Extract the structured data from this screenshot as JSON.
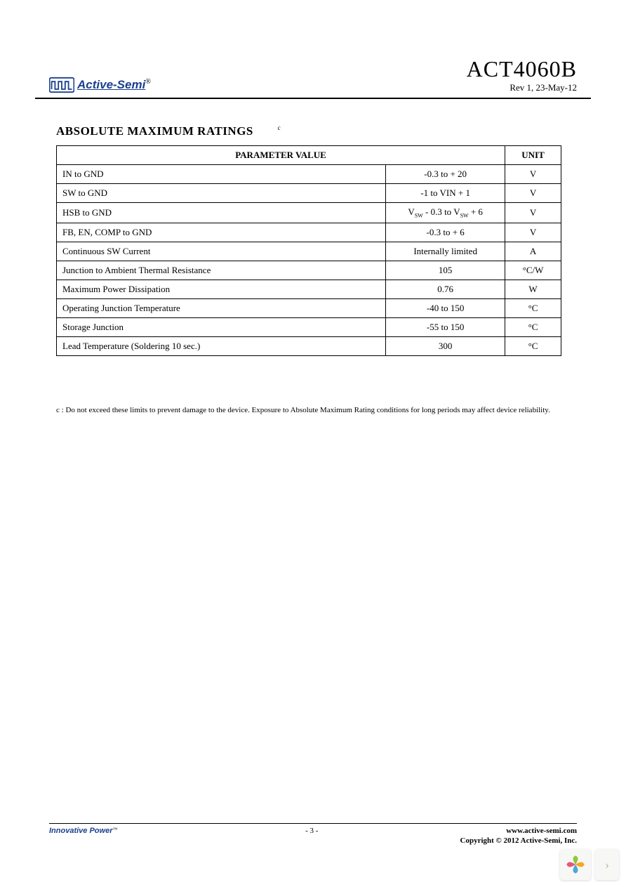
{
  "header": {
    "logo_text": "Active-Semi",
    "logo_reg": "®",
    "part_number": "ACT4060B",
    "revision": "Rev 1, 23-May-12"
  },
  "section": {
    "title": "ABSOLUTE MAXIMUM RATINGS",
    "note_marker": "c"
  },
  "table": {
    "headers": {
      "param": "PARAMETER VALUE",
      "unit": "UNIT"
    },
    "rows": [
      {
        "param": "IN to GND",
        "value": "-0.3 to + 20",
        "unit": "V"
      },
      {
        "param": "SW to GND",
        "value": "-1 to VIN + 1",
        "unit": "V"
      },
      {
        "param": "HSB to GND",
        "value_html": "V<sub>SW</sub> - 0.3 to V<sub>SW</sub> + 6",
        "unit": "V"
      },
      {
        "param": "FB, EN, COMP to GND",
        "value": "-0.3 to + 6",
        "unit": "V"
      },
      {
        "param": "Continuous SW Current",
        "value": "Internally limited",
        "unit": "A"
      },
      {
        "param": "Junction to Ambient Thermal Resistance",
        "value": "105",
        "unit": "°C/W"
      },
      {
        "param": "Maximum Power Dissipation",
        "value": "0.76",
        "unit": "W"
      },
      {
        "param": "Operating Junction Temperature",
        "value": "-40 to 150",
        "unit": "°C"
      },
      {
        "param": "Storage Junction",
        "value": "-55 to 150",
        "unit": "°C"
      },
      {
        "param": "Lead Temperature (Soldering 10 sec.)",
        "value": "300",
        "unit": "°C"
      }
    ]
  },
  "footnote": {
    "marker": "c",
    "text": ": Do not exceed these limits to prevent damage to the device. Exposure to Absolute Maximum Rating conditions for long periods may affect device reliability."
  },
  "footer": {
    "left": "Innovative Power",
    "tm": "™",
    "page": "- 3 -",
    "url": "www.active-semi.com",
    "copyright": "Copyright © 2012 Active-Semi, Inc."
  },
  "colors": {
    "brand_blue": "#1a3f8f",
    "border": "#000000",
    "text": "#000000",
    "widget_bg": "#f7f7f5"
  }
}
